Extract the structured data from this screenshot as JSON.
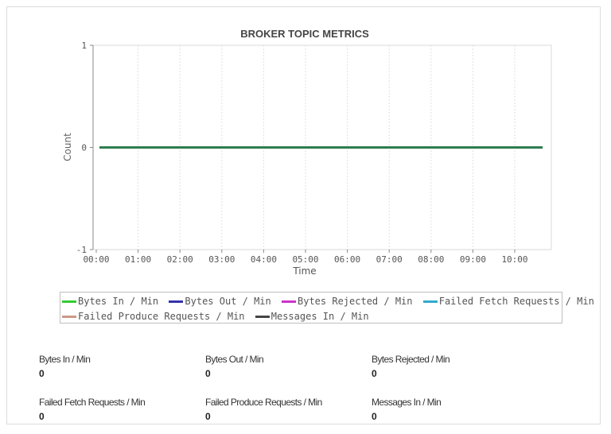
{
  "chart_data": {
    "type": "line",
    "title": "BROKER TOPIC METRICS",
    "xlabel": "Time",
    "ylabel": "Count",
    "ylim": [
      -1,
      1
    ],
    "yticks": [
      "1",
      "0",
      "-1"
    ],
    "x": [
      "00:00",
      "01:00",
      "02:00",
      "03:00",
      "04:00",
      "05:00",
      "06:00",
      "07:00",
      "08:00",
      "09:00",
      "10:00"
    ],
    "grid": true,
    "legend_position": "bottom",
    "series": [
      {
        "name": "Bytes In / Min",
        "color": "#33cc33",
        "values": [
          0,
          0,
          0,
          0,
          0,
          0,
          0,
          0,
          0,
          0,
          0
        ]
      },
      {
        "name": "Bytes Out / Min",
        "color": "#3333aa",
        "values": [
          0,
          0,
          0,
          0,
          0,
          0,
          0,
          0,
          0,
          0,
          0
        ]
      },
      {
        "name": "Bytes Rejected / Min",
        "color": "#cc33cc",
        "values": [
          0,
          0,
          0,
          0,
          0,
          0,
          0,
          0,
          0,
          0,
          0
        ]
      },
      {
        "name": "Failed Fetch Requests / Min",
        "color": "#33aacc",
        "values": [
          0,
          0,
          0,
          0,
          0,
          0,
          0,
          0,
          0,
          0,
          0
        ]
      },
      {
        "name": "Failed Produce Requests / Min",
        "color": "#cc9988",
        "values": [
          0,
          0,
          0,
          0,
          0,
          0,
          0,
          0,
          0,
          0,
          0
        ]
      },
      {
        "name": "Messages In / Min",
        "color": "#444444",
        "values": [
          0,
          0,
          0,
          0,
          0,
          0,
          0,
          0,
          0,
          0,
          0
        ]
      }
    ],
    "line_color": "#2e7d4f"
  },
  "metrics": [
    {
      "label": "Bytes In / Min",
      "value": "0"
    },
    {
      "label": "Bytes Out / Min",
      "value": "0"
    },
    {
      "label": "Bytes Rejected / Min",
      "value": "0"
    },
    {
      "label": "Failed Fetch Requests / Min",
      "value": "0"
    },
    {
      "label": "Failed Produce Requests / Min",
      "value": "0"
    },
    {
      "label": "Messages In / Min",
      "value": "0"
    }
  ]
}
